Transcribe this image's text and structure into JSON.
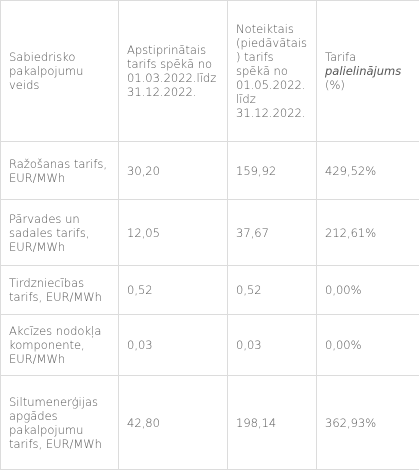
{
  "table": {
    "header": [
      "Sabiedrisko pakalpojumu veids",
      "Apstiprinātais tarifs spēkā no 01.03.2022.līdz 31.12.2022.",
      "Noteiktais (piedāvātais) tarifs spēkā no 01.05.2022. līdz 31.12.2022.",
      {
        "text": "Tarifa",
        "emphasis": "palielinājums",
        "suffix": "(%)"
      }
    ],
    "rows": [
      [
        "Ražošanas tarifs, EUR/MWh",
        "30,20",
        "159,92",
        "429,52%"
      ],
      [
        "Pārvades un sadales tarifs, EUR/MWh",
        "12,05",
        "37,67",
        "212,61%"
      ],
      [
        "Tirdzniecības tarifs, EUR/MWh",
        "0,52",
        "0,52",
        "0,00%"
      ],
      [
        "Akcīzes nodokļa komponente, EUR/MWh",
        "0,03",
        "0,03",
        "0,00%"
      ],
      [
        "Siltumenerģijas apgādes pakalpojumu tarifs, EUR/MWh",
        "42,80",
        "198,14",
        "362,93%"
      ]
    ]
  }
}
